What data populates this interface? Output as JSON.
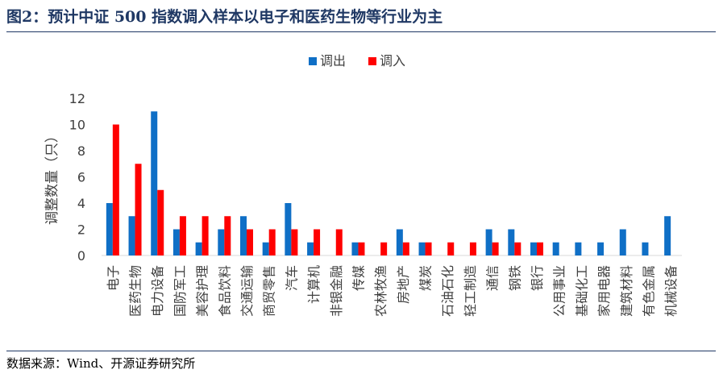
{
  "figure": {
    "title": "图2：预计中证 500 指数调入样本以电子和医药生物等行业为主",
    "source": "数据来源：Wind、开源证券研究所"
  },
  "colors": {
    "out": "#0f6fc6",
    "in": "#ff0000",
    "axis": "#d9d9d9",
    "text": "#404040"
  },
  "chart_data": {
    "type": "bar",
    "title": "",
    "xlabel": "",
    "ylabel": "调整数量（只）",
    "ylim": [
      0,
      12
    ],
    "yticks": [
      0,
      2,
      4,
      6,
      8,
      10,
      12
    ],
    "grid": false,
    "legend": "top-center",
    "categories": [
      "电子",
      "医药生物",
      "电力设备",
      "国防军工",
      "美容护理",
      "食品饮料",
      "交通运输",
      "商贸零售",
      "汽车",
      "计算机",
      "非银金融",
      "传媒",
      "农林牧渔",
      "房地产",
      "煤炭",
      "石油石化",
      "轻工制造",
      "通信",
      "钢铁",
      "银行",
      "公用事业",
      "基础化工",
      "家用电器",
      "建筑材料",
      "有色金属",
      "机械设备"
    ],
    "series": [
      {
        "name": "调出",
        "values": [
          4,
          3,
          11,
          2,
          1,
          2,
          3,
          1,
          4,
          1,
          0,
          1,
          0,
          2,
          1,
          0,
          0,
          2,
          2,
          1,
          1,
          1,
          1,
          2,
          1,
          3
        ]
      },
      {
        "name": "调入",
        "values": [
          10,
          7,
          5,
          3,
          3,
          3,
          2,
          2,
          2,
          2,
          2,
          1,
          1,
          1,
          1,
          1,
          1,
          1,
          1,
          1,
          0,
          0,
          0,
          0,
          0,
          0
        ]
      }
    ]
  }
}
